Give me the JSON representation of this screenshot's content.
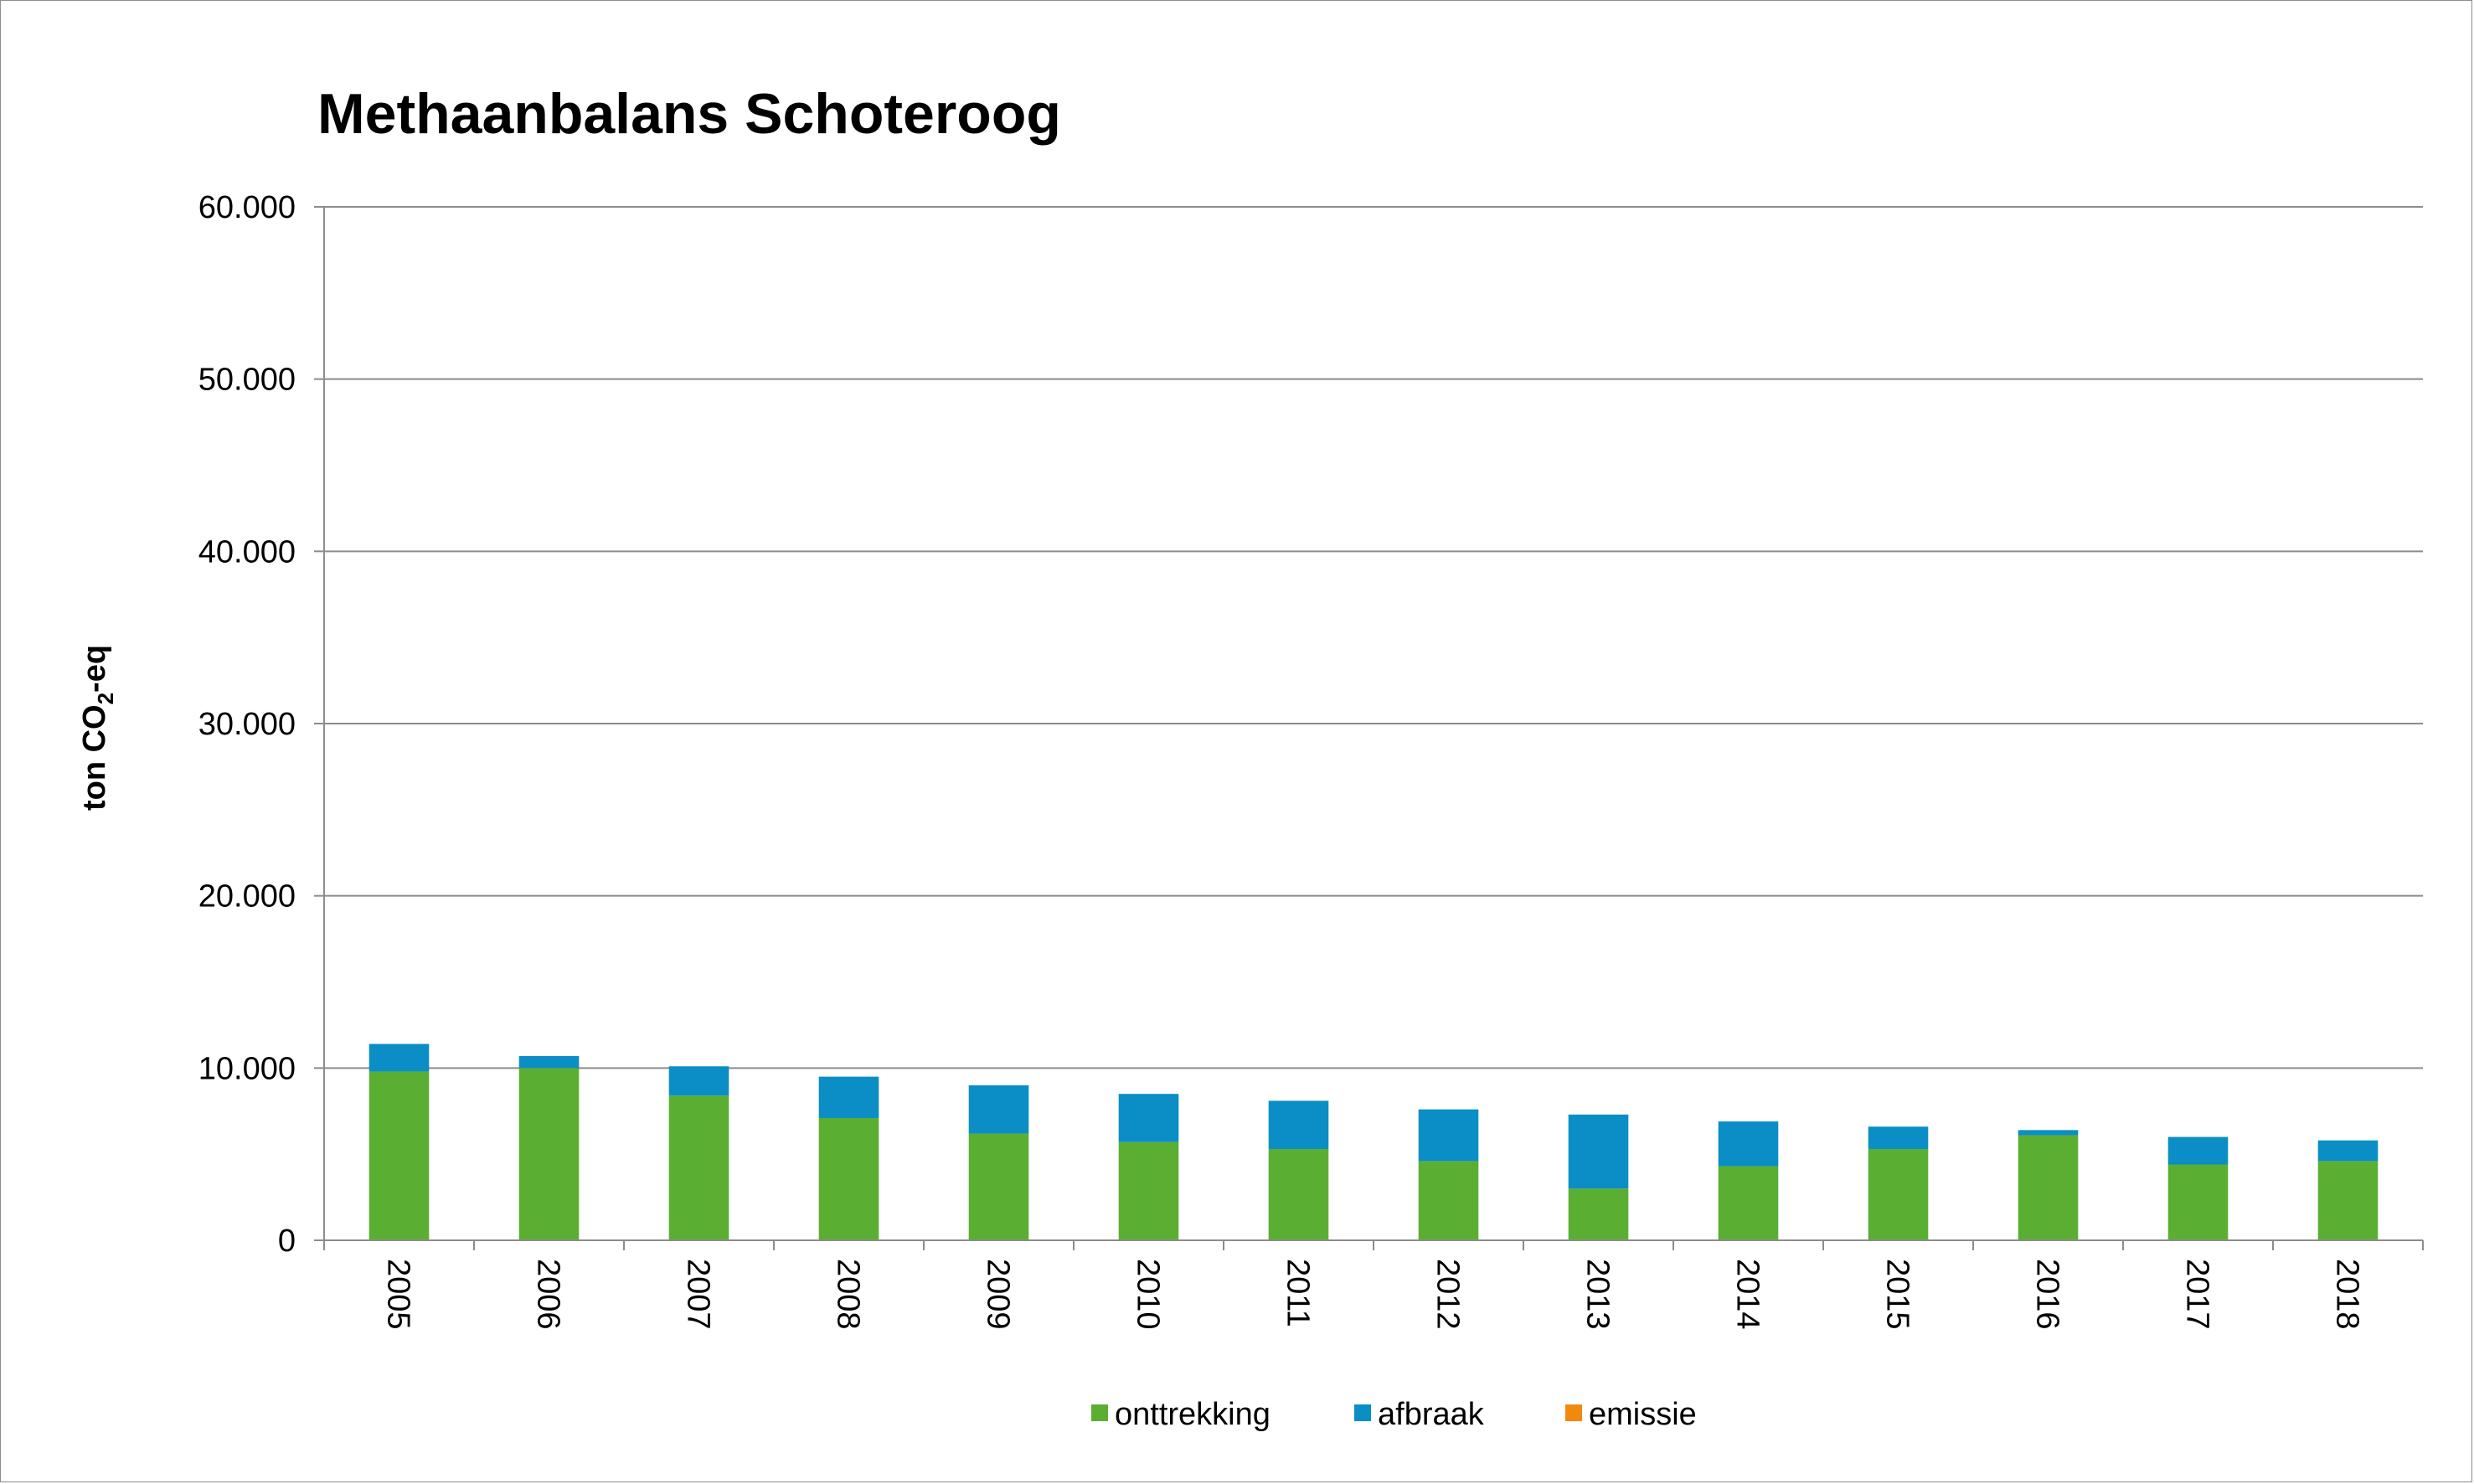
{
  "chart_data": {
    "type": "bar",
    "stacked": true,
    "title": "Methaanbalans Schoteroog",
    "ylabel": {
      "prefix": "ton CO",
      "subscript": "2",
      "suffix": "-eq"
    },
    "xlabel": "",
    "ylim": [
      0,
      60000
    ],
    "yticks": [
      0,
      10000,
      20000,
      30000,
      40000,
      50000,
      60000
    ],
    "ytick_labels": [
      "0",
      "10.000",
      "20.000",
      "30.000",
      "40.000",
      "50.000",
      "60.000"
    ],
    "grid": true,
    "legend_position": "bottom",
    "categories": [
      "2005",
      "2006",
      "2007",
      "2008",
      "2009",
      "2010",
      "2011",
      "2012",
      "2013",
      "2014",
      "2015",
      "2016",
      "2017",
      "2018"
    ],
    "series": [
      {
        "name": "onttrekking",
        "color": "#5aaf33",
        "values": [
          9800,
          10000,
          8400,
          7100,
          6200,
          5700,
          5300,
          4600,
          3000,
          4300,
          5300,
          6100,
          4400,
          4600
        ]
      },
      {
        "name": "afbraak",
        "color": "#0b8ec5",
        "values": [
          1600,
          700,
          1700,
          2400,
          2800,
          2800,
          2800,
          3000,
          4300,
          2600,
          1300,
          300,
          1600,
          1200
        ]
      },
      {
        "name": "emissie",
        "color": "#f2890f",
        "values": [
          0,
          0,
          0,
          0,
          0,
          0,
          0,
          0,
          0,
          0,
          0,
          0,
          0,
          0
        ]
      }
    ]
  }
}
